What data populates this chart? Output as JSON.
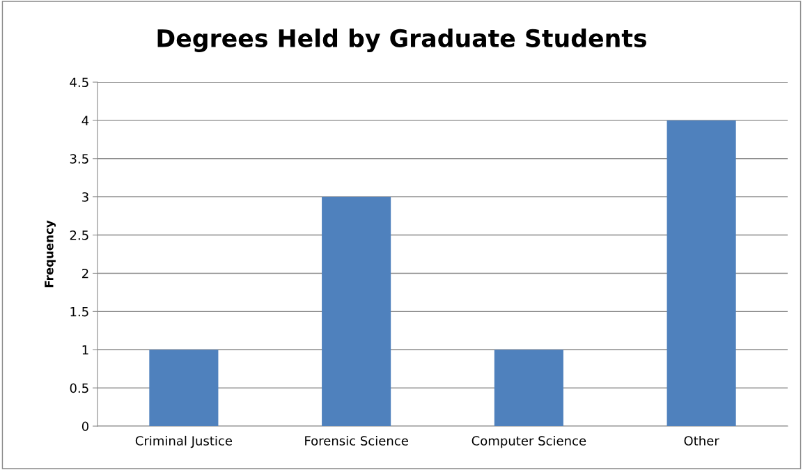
{
  "chart_data": {
    "type": "bar",
    "title": "Degrees Held by Graduate Students",
    "ylabel": "Frequency",
    "categories": [
      "Criminal Justice",
      "Forensic Science",
      "Computer Science",
      "Other"
    ],
    "values": [
      1,
      3,
      1,
      4
    ],
    "color": "#4f81bd",
    "ylim": [
      0,
      4.5
    ],
    "yticks": [
      0,
      0.5,
      1,
      1.5,
      2,
      2.5,
      3,
      3.5,
      4,
      4.5
    ],
    "grid": "y",
    "legend": false
  }
}
